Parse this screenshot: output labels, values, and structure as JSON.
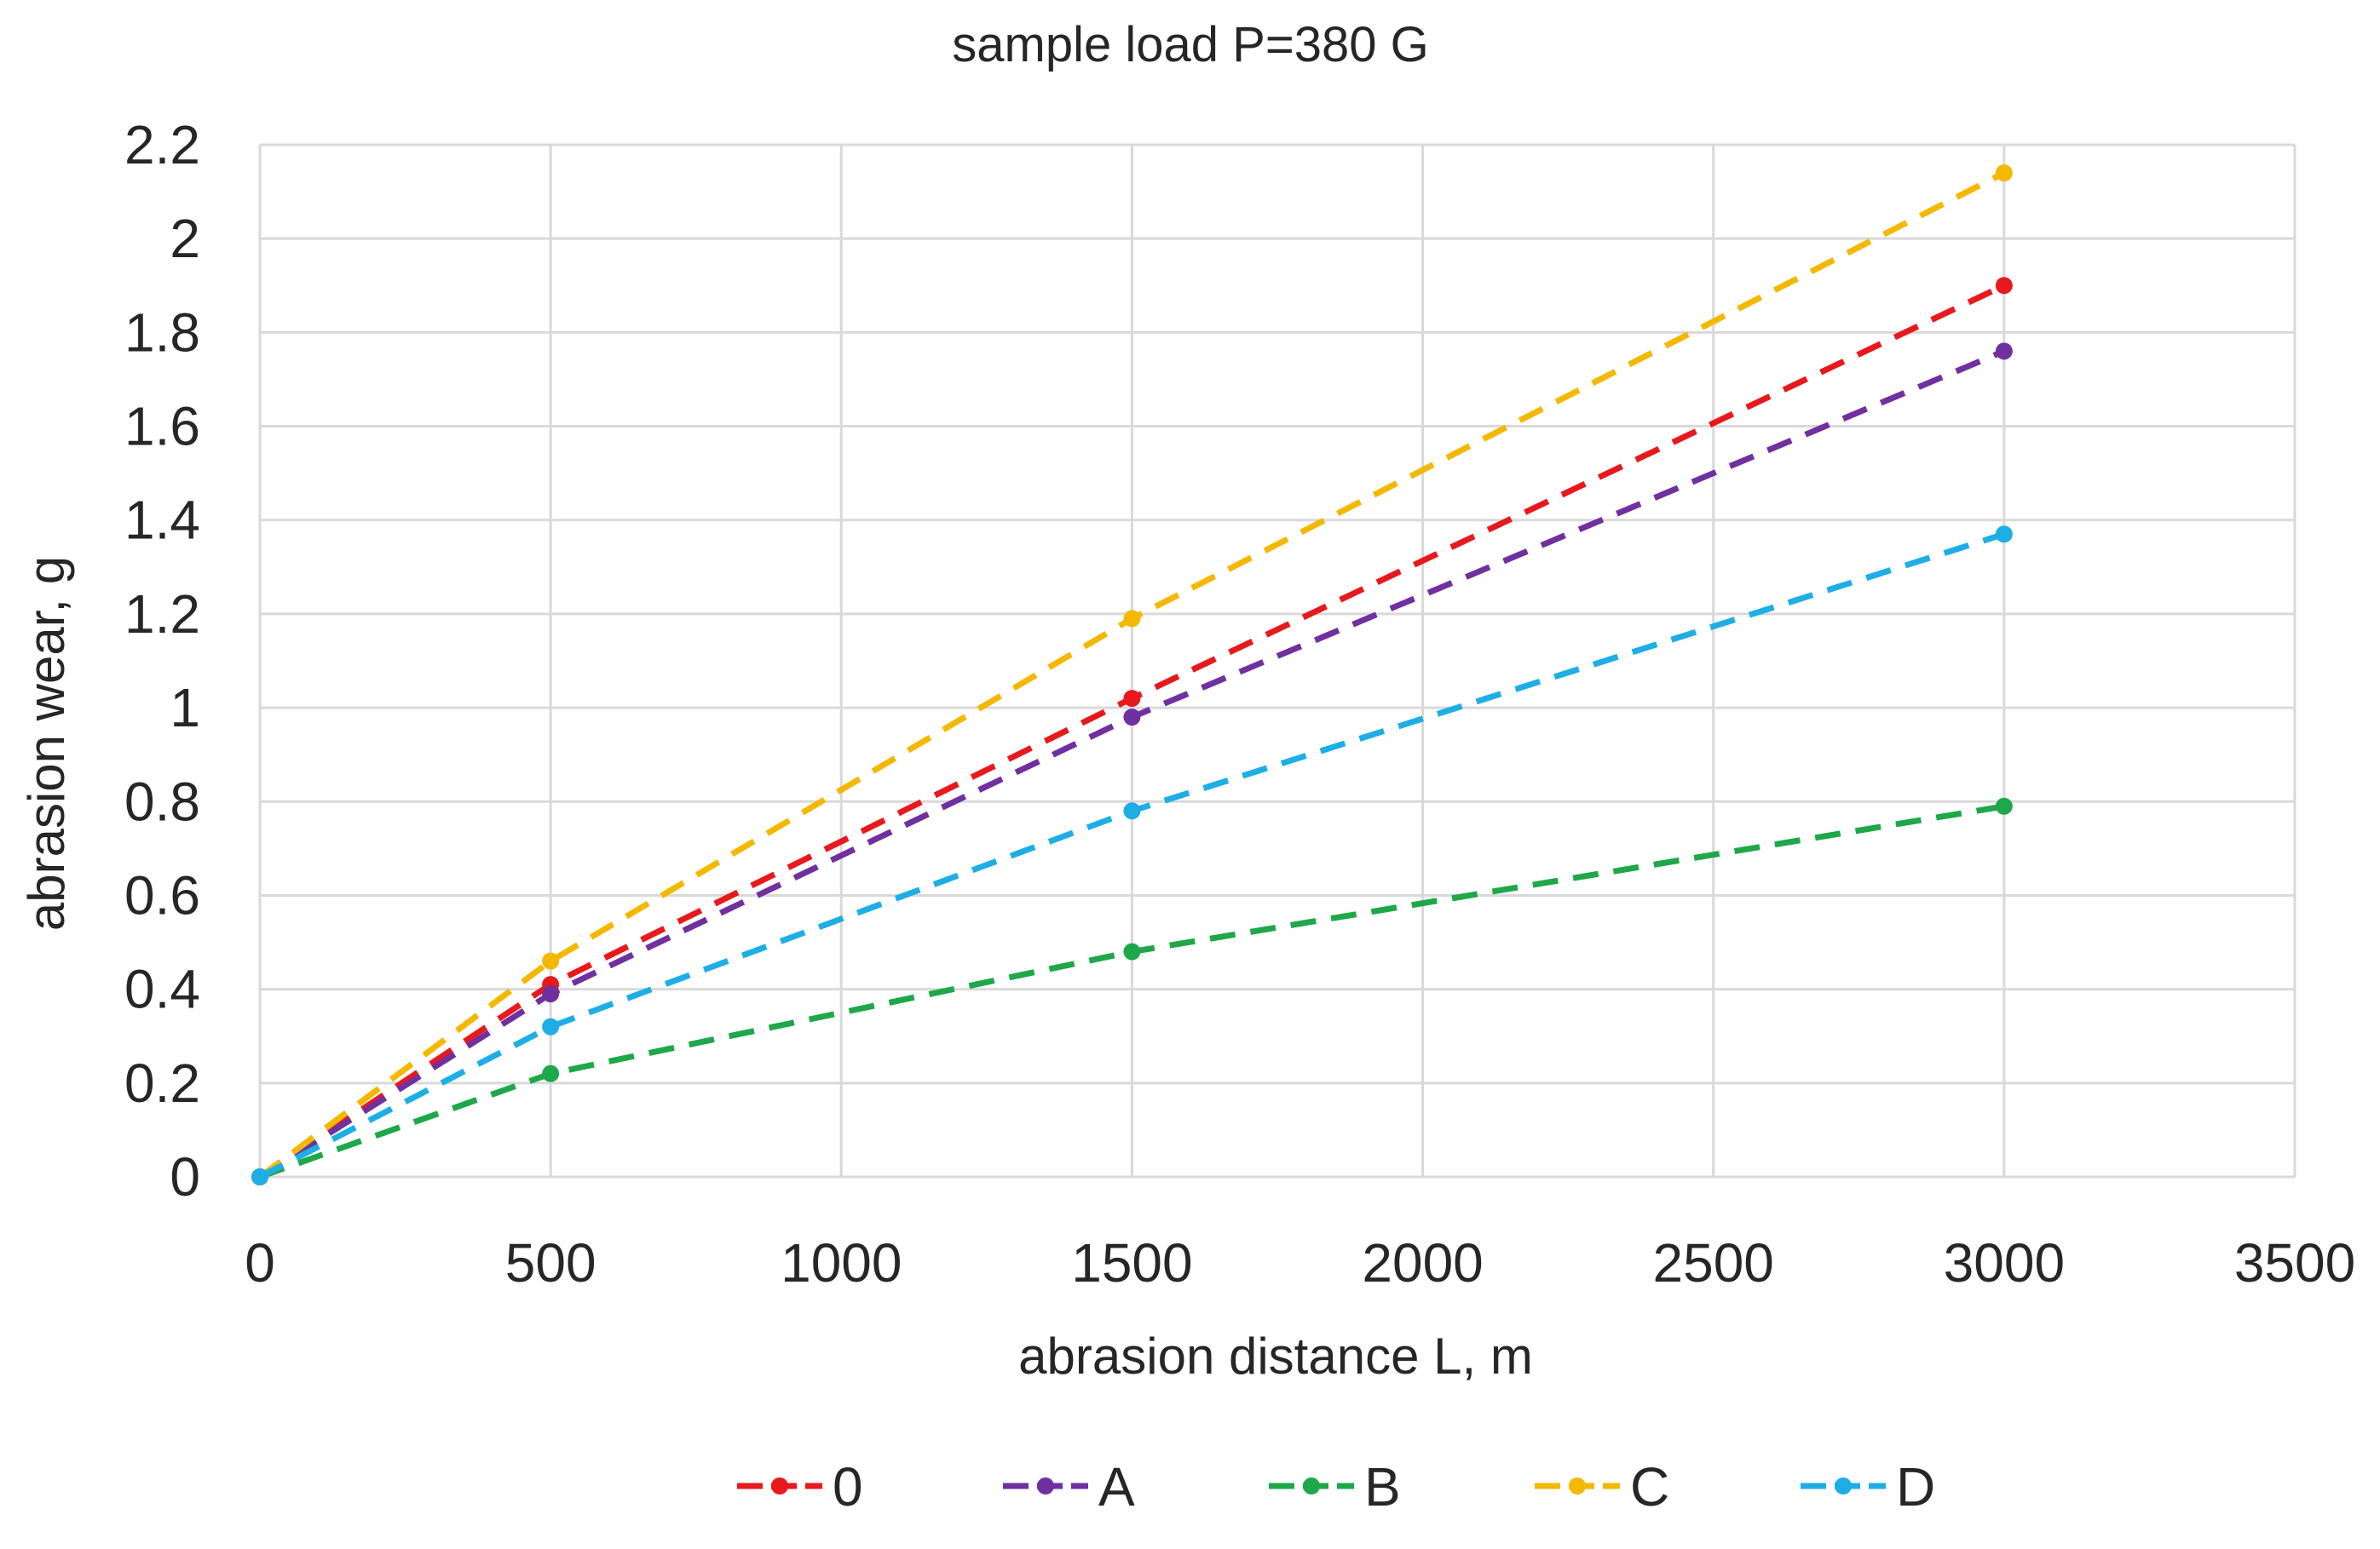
{
  "chart_data": {
    "type": "line",
    "title": "sample load P=380 G",
    "xlabel": "abrasion distance L, m",
    "ylabel": "abrasion wear, g",
    "xlim": [
      0,
      3500
    ],
    "ylim": [
      0,
      2.2
    ],
    "x_ticks": [
      "0",
      "500",
      "1000",
      "1500",
      "2000",
      "2500",
      "3000",
      "3500"
    ],
    "y_ticks": [
      "0",
      "0.2",
      "0.4",
      "0.6",
      "0.8",
      "1",
      "1.2",
      "1.4",
      "1.6",
      "1.8",
      "2",
      "2.2"
    ],
    "x_tick_values": [
      0,
      500,
      1000,
      1500,
      2000,
      2500,
      3000,
      3500
    ],
    "y_tick_values": [
      0,
      0.2,
      0.4,
      0.6,
      0.8,
      1,
      1.2,
      1.4,
      1.6,
      1.8,
      2,
      2.2
    ],
    "grid": true,
    "line_style": "dashed",
    "legend_position": "bottom",
    "x": [
      0,
      500,
      1500,
      3000
    ],
    "series": [
      {
        "name": "0",
        "color": "#e8191c",
        "values": [
          0,
          0.41,
          1.02,
          1.9
        ]
      },
      {
        "name": "A",
        "color": "#7030a0",
        "values": [
          0,
          0.39,
          0.98,
          1.76
        ]
      },
      {
        "name": "B",
        "color": "#1ea84a",
        "values": [
          0,
          0.22,
          0.48,
          0.79
        ]
      },
      {
        "name": "C",
        "color": "#f4b800",
        "values": [
          0,
          0.46,
          1.19,
          2.14
        ]
      },
      {
        "name": "D",
        "color": "#1eaee6",
        "values": [
          0,
          0.32,
          0.78,
          1.37
        ]
      }
    ]
  }
}
